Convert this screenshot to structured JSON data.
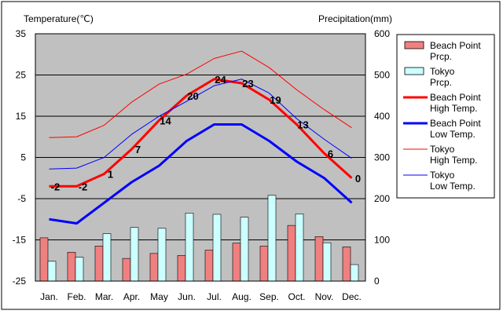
{
  "chart_data": {
    "type": "bar+line",
    "left_axis_title": "Temperature(℃)",
    "right_axis_title": "Precipitation(mm)",
    "left_ylim": [
      -25,
      35
    ],
    "left_ticks": [
      "35",
      "25",
      "15",
      "5",
      "-5",
      "-15",
      "-25"
    ],
    "right_ylim": [
      0,
      600
    ],
    "right_ticks": [
      "600",
      "500",
      "400",
      "300",
      "200",
      "100",
      "0"
    ],
    "categories": [
      "Jan.",
      "Feb.",
      "Mar.",
      "Apr.",
      "May",
      "Jun.",
      "Jul.",
      "Aug.",
      "Sep.",
      "Oct.",
      "Nov.",
      "Dec."
    ],
    "grid": true,
    "legend_position": "right",
    "bar_series": [
      {
        "name": "Beach Point\nPrcp.",
        "color": "#F08080",
        "values": [
          105,
          70,
          85,
          55,
          67,
          62,
          75,
          92,
          85,
          135,
          108,
          83
        ]
      },
      {
        "name": "Tokyo\nPrcp.",
        "color": "#CCFFFF",
        "values": [
          48,
          58,
          115,
          130,
          128,
          165,
          162,
          155,
          208,
          163,
          93,
          40
        ]
      }
    ],
    "line_series": [
      {
        "name": "Beach Point\nHigh Temp.",
        "color": "#FF0000",
        "width": 3,
        "values": [
          -2,
          -2,
          1,
          7,
          14,
          20,
          24,
          23,
          19,
          13,
          6,
          0
        ],
        "labels": [
          "-2",
          "-2",
          "1",
          "7",
          "14",
          "20",
          "24",
          "23",
          "19",
          "13",
          "6",
          "0"
        ]
      },
      {
        "name": "Beach Point\nLow Temp.",
        "color": "#0000FF",
        "width": 3,
        "values": [
          -10,
          -11,
          -6,
          -1,
          3,
          9,
          13,
          13,
          9,
          4,
          0,
          -6
        ]
      },
      {
        "name": "Tokyo\nHigh Temp.",
        "color": "#FF0000",
        "width": 1,
        "values": [
          9.8,
          10,
          12.8,
          18.4,
          22.8,
          25.2,
          29,
          30.8,
          26.8,
          21.4,
          16.6,
          12.2
        ]
      },
      {
        "name": "Tokyo\nLow Temp.",
        "color": "#0000FF",
        "width": 1,
        "values": [
          2.2,
          2.4,
          5,
          10.6,
          15,
          18.6,
          22.4,
          24,
          20.6,
          14.4,
          9.4,
          4.8
        ]
      }
    ]
  }
}
